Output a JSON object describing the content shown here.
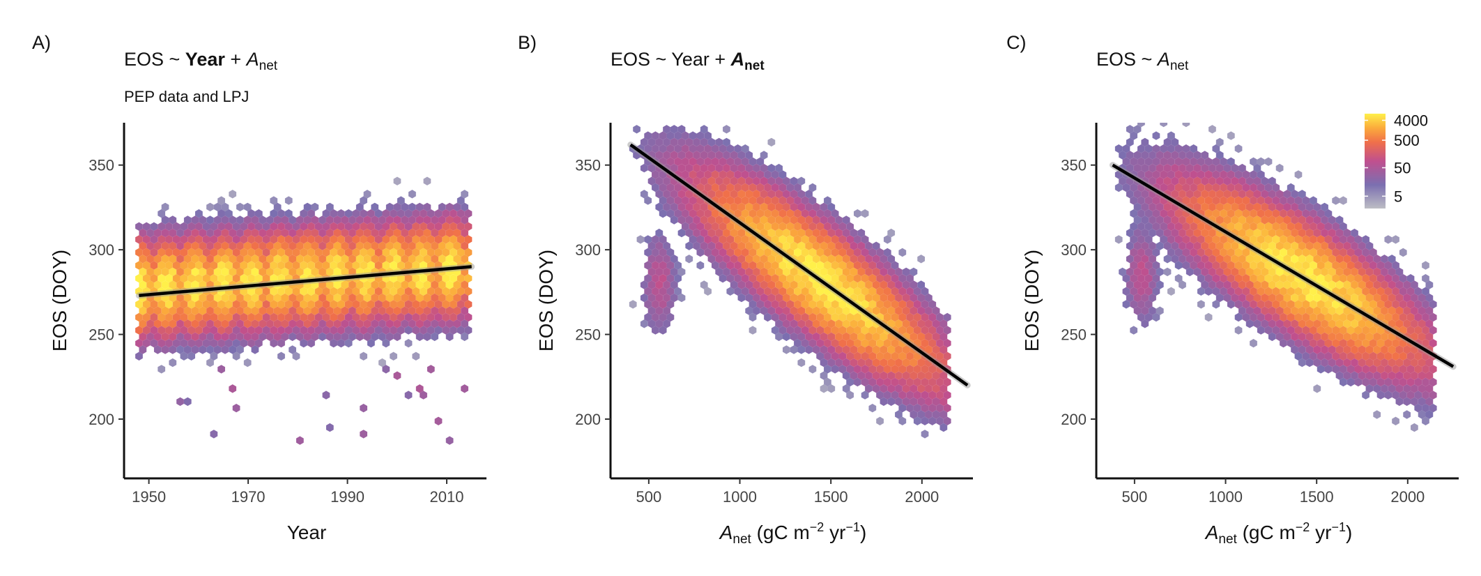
{
  "colors": {
    "scale_low": "#bdbdc4",
    "scale_mid1": "#7b6fb0",
    "scale_mid2": "#c0508e",
    "scale_mid3": "#f0704a",
    "scale_mid4": "#fbab3c",
    "scale_high": "#fff04a",
    "fit_line": "#000000",
    "axis": "#111111"
  },
  "legend": {
    "labels": [
      "4000",
      "500",
      "50",
      "5"
    ]
  },
  "panels": [
    {
      "letter": "A)",
      "title_main": "EOS ~ ",
      "title_term1": "Year",
      "title_plus": " + ",
      "title_term2": "A",
      "title_term2_sub": "net",
      "subtitle": "PEP data and LPJ",
      "xlabel_main": "Year",
      "xlabel_sub": "",
      "xlabel_unit": "",
      "ylabel": "EOS (DOY)",
      "xticks": [
        "1950",
        "1970",
        "1990",
        "2010"
      ],
      "yticks": [
        "200",
        "250",
        "300",
        "350"
      ]
    },
    {
      "letter": "B)",
      "title_main": "EOS ~ Year + ",
      "title_term1": "",
      "title_plus": "",
      "title_term2": "A",
      "title_term2_sub": "net",
      "subtitle": "",
      "xlabel_main": "A",
      "xlabel_sub": "net",
      "xlabel_unit": " (gC m",
      "ylabel": "EOS (DOY)",
      "xticks": [
        "500",
        "1000",
        "1500",
        "2000"
      ],
      "yticks": [
        "200",
        "250",
        "300",
        "350"
      ]
    },
    {
      "letter": "C)",
      "title_main": "EOS ~ ",
      "title_term1": "",
      "title_plus": "",
      "title_term2": "A",
      "title_term2_sub": "net",
      "subtitle": "",
      "xlabel_main": "A",
      "xlabel_sub": "net",
      "xlabel_unit": " (gC m",
      "ylabel": "EOS (DOY)",
      "xticks": [
        "500",
        "1000",
        "1500",
        "2000"
      ],
      "yticks": [
        "200",
        "250",
        "300",
        "350"
      ]
    }
  ],
  "units": {
    "m_exp": "−2",
    "yr_text": " yr",
    "yr_exp": "−1",
    "close": ")"
  },
  "chart_data": [
    {
      "type": "heatmap",
      "subtype": "hexbin-with-regression",
      "x_var": "Year",
      "y_var": "EOS (DOY)",
      "xlim": [
        1945,
        2018
      ],
      "ylim": [
        165,
        375
      ],
      "x_ticks": [
        1950,
        1970,
        1990,
        2010
      ],
      "y_ticks": [
        200,
        250,
        300,
        350
      ],
      "density_center": {
        "y": 283,
        "y_spread": 17
      },
      "x_range": [
        1948,
        2015
      ],
      "regression": {
        "x": [
          1948,
          2015
        ],
        "y": [
          273,
          290
        ]
      }
    },
    {
      "type": "heatmap",
      "subtype": "hexbin-with-regression",
      "x_var": "A_net (gC m-2 yr-1)",
      "y_var": "EOS (DOY)",
      "xlim": [
        290,
        2280
      ],
      "ylim": [
        165,
        375
      ],
      "x_ticks": [
        500,
        1000,
        1500,
        2000
      ],
      "y_ticks": [
        200,
        250,
        300,
        350
      ],
      "density_peak": {
        "x": 1450,
        "y": 285
      },
      "outlier_cluster": {
        "x": 560,
        "y": 280
      },
      "regression": {
        "x": [
          400,
          2250
        ],
        "y": [
          362,
          220
        ]
      }
    },
    {
      "type": "heatmap",
      "subtype": "hexbin-with-regression",
      "x_var": "A_net (gC m-2 yr-1)",
      "y_var": "EOS (DOY)",
      "xlim": [
        290,
        2280
      ],
      "ylim": [
        165,
        375
      ],
      "x_ticks": [
        500,
        1000,
        1500,
        2000
      ],
      "y_ticks": [
        200,
        250,
        300,
        350
      ],
      "density_peak": {
        "x": 1420,
        "y": 287
      },
      "outlier_cluster": {
        "x": 540,
        "y": 285
      },
      "regression": {
        "x": [
          380,
          2250
        ],
        "y": [
          350,
          231
        ]
      }
    }
  ]
}
